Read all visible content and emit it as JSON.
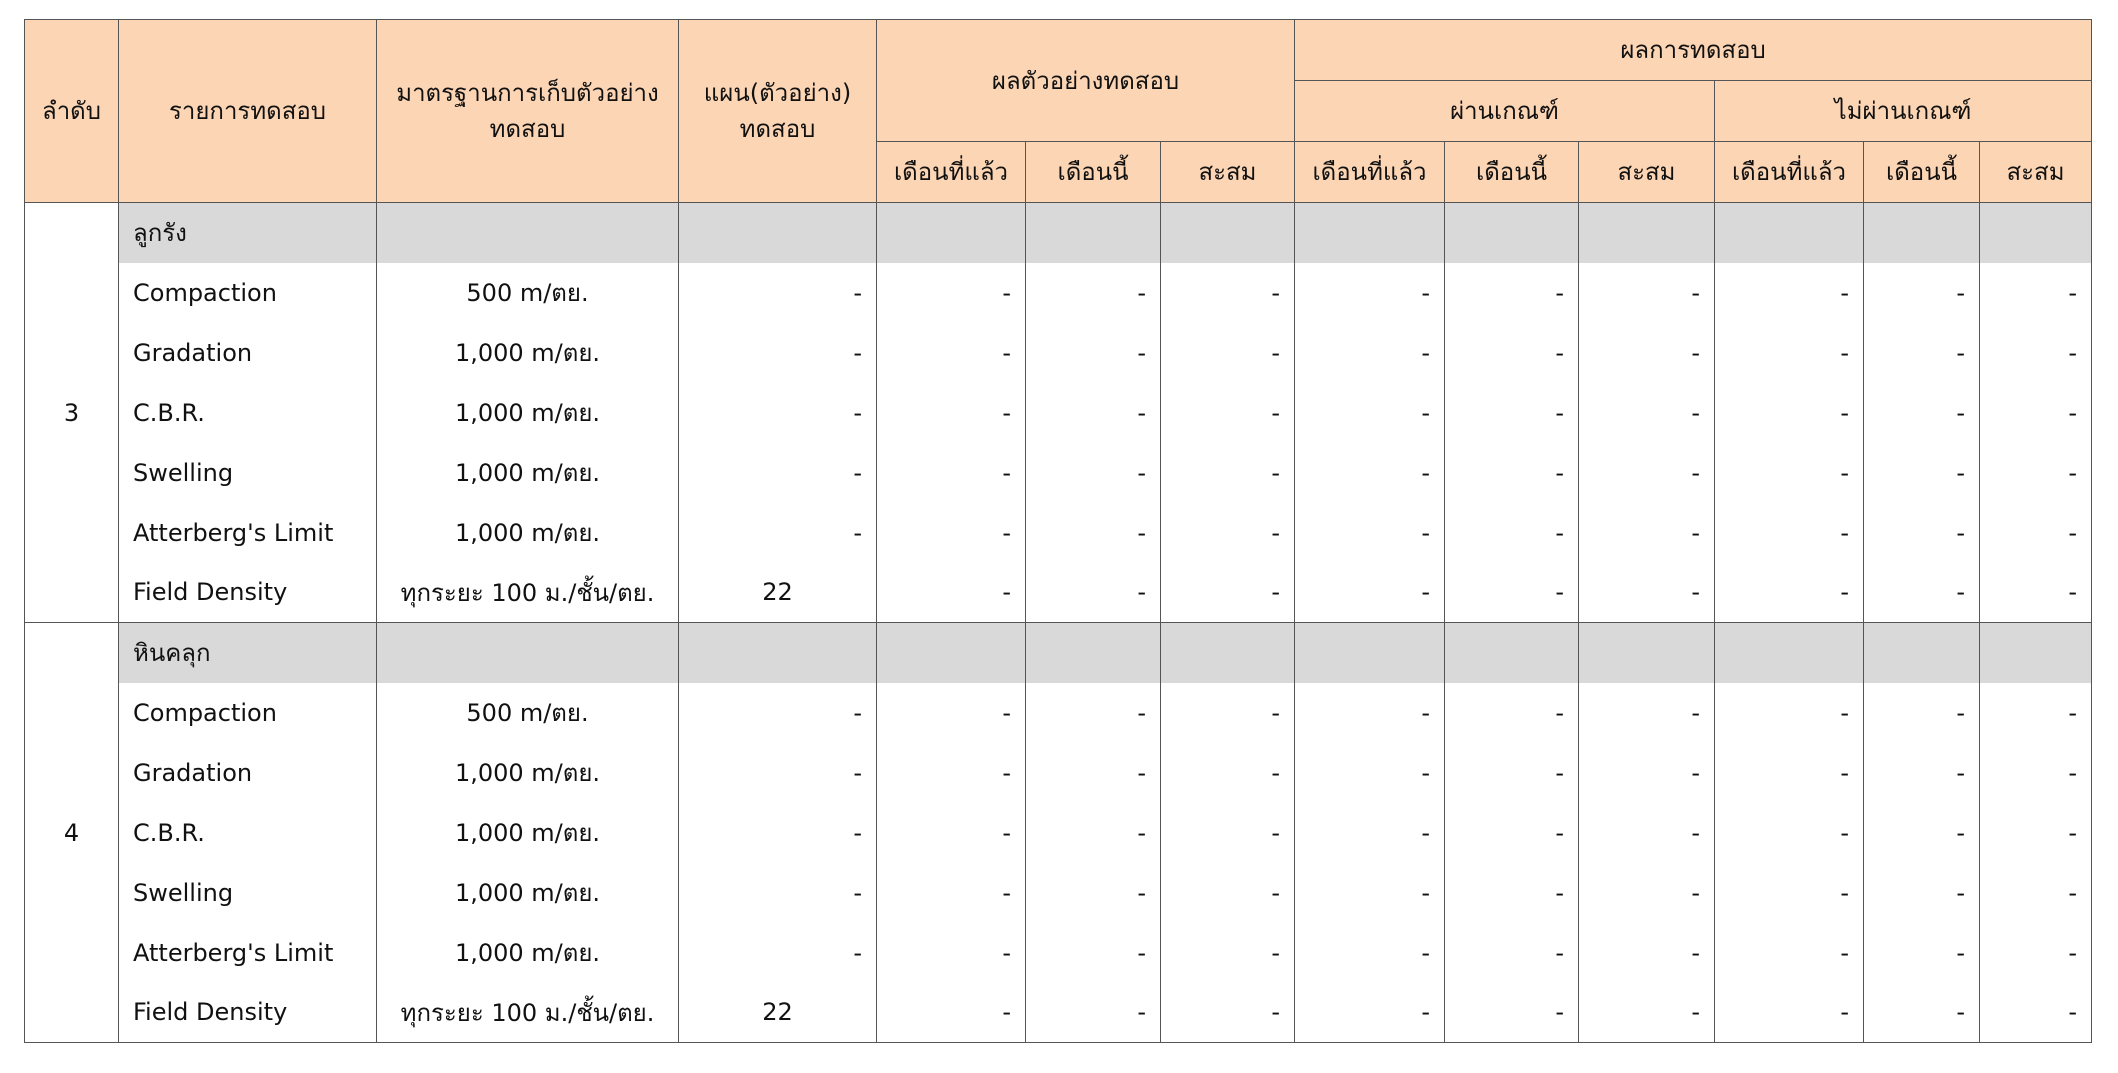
{
  "columns": {
    "no": "ลำดับ",
    "item": "รายการทดสอบ",
    "standard": [
      "มาตรฐานการเก็บตัวอย่าง",
      "ทดสอบ"
    ],
    "plan": [
      "แผน(ตัวอย่าง)",
      "ทดสอบ"
    ],
    "samples": "ผลตัวอย่างทดสอบ",
    "results": "ผลการทดสอบ",
    "pass": "ผ่านเกณฑ์",
    "fail": "ไม่ผ่านเกณฑ์",
    "sub": [
      "เดือนที่แล้ว",
      "เดือนนี้",
      "สะสม"
    ]
  },
  "groups": [
    {
      "no": "3",
      "name": "ลูกรัง",
      "rows": [
        {
          "item": "Compaction",
          "standard": "500 m/ตย.",
          "plan": "-",
          "values": [
            "-",
            "-",
            "-",
            "-",
            "-",
            "-",
            "-",
            "-",
            "-"
          ]
        },
        {
          "item": "Gradation",
          "standard": "1,000 m/ตย.",
          "plan": "-",
          "values": [
            "-",
            "-",
            "-",
            "-",
            "-",
            "-",
            "-",
            "-",
            "-"
          ]
        },
        {
          "item": "C.B.R.",
          "standard": "1,000 m/ตย.",
          "plan": "-",
          "values": [
            "-",
            "-",
            "-",
            "-",
            "-",
            "-",
            "-",
            "-",
            "-"
          ]
        },
        {
          "item": "Swelling",
          "standard": "1,000 m/ตย.",
          "plan": "-",
          "values": [
            "-",
            "-",
            "-",
            "-",
            "-",
            "-",
            "-",
            "-",
            "-"
          ]
        },
        {
          "item": "Atterberg's Limit",
          "standard": "1,000 m/ตย.",
          "plan": "-",
          "values": [
            "-",
            "-",
            "-",
            "-",
            "-",
            "-",
            "-",
            "-",
            "-"
          ]
        },
        {
          "item": "Field Density",
          "standard": "ทุกระยะ 100 ม./ชั้น/ตย.",
          "plan": 22,
          "values": [
            "-",
            "-",
            "-",
            "-",
            "-",
            "-",
            "-",
            "-",
            "-"
          ]
        }
      ]
    },
    {
      "no": "4",
      "name": "หินคลุก",
      "rows": [
        {
          "item": "Compaction",
          "standard": "500 m/ตย.",
          "plan": "-",
          "values": [
            "-",
            "-",
            "-",
            "-",
            "-",
            "-",
            "-",
            "-",
            "-"
          ]
        },
        {
          "item": "Gradation",
          "standard": "1,000 m/ตย.",
          "plan": "-",
          "values": [
            "-",
            "-",
            "-",
            "-",
            "-",
            "-",
            "-",
            "-",
            "-"
          ]
        },
        {
          "item": "C.B.R.",
          "standard": "1,000 m/ตย.",
          "plan": "-",
          "values": [
            "-",
            "-",
            "-",
            "-",
            "-",
            "-",
            "-",
            "-",
            "-"
          ]
        },
        {
          "item": "Swelling",
          "standard": "1,000 m/ตย.",
          "plan": "-",
          "values": [
            "-",
            "-",
            "-",
            "-",
            "-",
            "-",
            "-",
            "-",
            "-"
          ]
        },
        {
          "item": "Atterberg's Limit",
          "standard": "1,000 m/ตย.",
          "plan": "-",
          "values": [
            "-",
            "-",
            "-",
            "-",
            "-",
            "-",
            "-",
            "-",
            "-"
          ]
        },
        {
          "item": "Field Density",
          "standard": "ทุกระยะ 100 ม./ชั้น/ตย.",
          "plan": 22,
          "values": [
            "-",
            "-",
            "-",
            "-",
            "-",
            "-",
            "-",
            "-",
            "-"
          ]
        }
      ]
    }
  ]
}
